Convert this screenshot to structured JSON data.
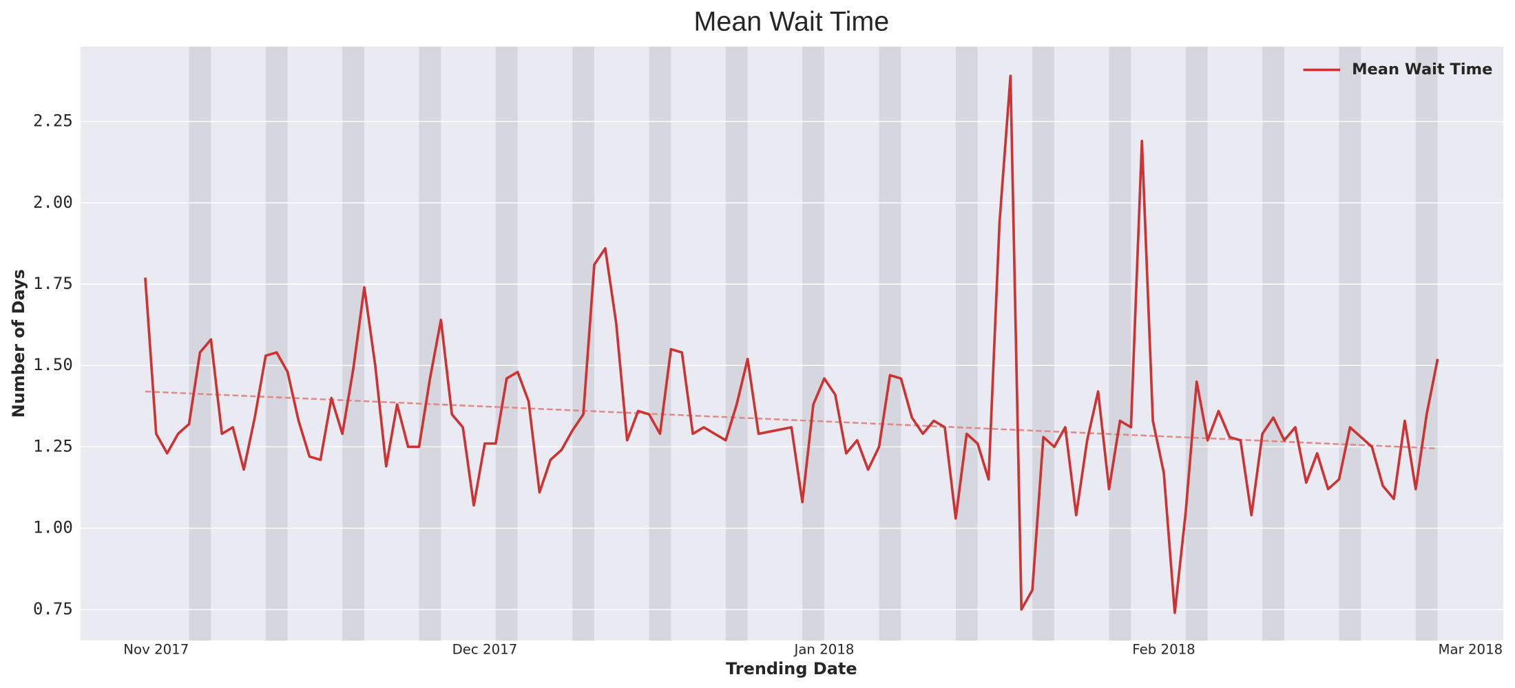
{
  "chart_data": {
    "type": "line",
    "title": "Mean Wait Time",
    "xlabel": "Trending Date",
    "ylabel": "Number of Days",
    "x": [
      -1,
      0,
      1,
      2,
      3,
      4,
      5,
      6,
      7,
      8,
      9,
      10,
      11,
      12,
      13,
      14,
      15,
      16,
      17,
      18,
      19,
      20,
      21,
      22,
      23,
      24,
      25,
      26,
      27,
      28,
      29,
      30,
      31,
      32,
      33,
      34,
      35,
      36,
      37,
      38,
      39,
      40,
      41,
      42,
      43,
      44,
      45,
      46,
      47,
      48,
      49,
      50,
      51,
      52,
      53,
      54,
      55,
      58,
      59,
      60,
      61,
      62,
      63,
      64,
      65,
      66,
      67,
      68,
      69,
      70,
      71,
      72,
      73,
      74,
      75,
      76,
      77,
      78,
      79,
      80,
      81,
      82,
      83,
      84,
      85,
      86,
      87,
      88,
      89,
      90,
      91,
      92,
      93,
      94,
      95,
      96,
      97,
      98,
      99,
      100,
      101,
      102,
      103,
      104,
      105,
      106,
      107,
      108,
      109,
      110,
      111,
      112,
      113,
      114,
      115,
      116,
      117
    ],
    "series": [
      {
        "name": "Mean Wait Time",
        "color": "#cc3333",
        "values": [
          1.77,
          1.29,
          1.23,
          1.29,
          1.32,
          1.54,
          1.58,
          1.29,
          1.31,
          1.18,
          1.34,
          1.53,
          1.54,
          1.48,
          1.33,
          1.22,
          1.21,
          1.4,
          1.29,
          1.49,
          1.74,
          1.5,
          1.19,
          1.38,
          1.25,
          1.25,
          1.46,
          1.64,
          1.35,
          1.31,
          1.07,
          1.26,
          1.26,
          1.46,
          1.48,
          1.39,
          1.11,
          1.21,
          1.24,
          1.3,
          1.35,
          1.81,
          1.86,
          1.63,
          1.27,
          1.36,
          1.35,
          1.29,
          1.55,
          1.54,
          1.29,
          1.31,
          1.29,
          1.27,
          1.38,
          1.52,
          1.29,
          1.31,
          1.08,
          1.38,
          1.46,
          1.41,
          1.23,
          1.27,
          1.18,
          1.25,
          1.47,
          1.46,
          1.34,
          1.29,
          1.33,
          1.31,
          1.03,
          1.29,
          1.26,
          1.15,
          1.94,
          2.39,
          0.75,
          0.81,
          1.28,
          1.25,
          1.31,
          1.04,
          1.27,
          1.42,
          1.12,
          1.33,
          1.31,
          2.19,
          1.33,
          1.17,
          0.74,
          1.05,
          1.45,
          1.27,
          1.36,
          1.28,
          1.27,
          1.04,
          1.29,
          1.34,
          1.27,
          1.31,
          1.14,
          1.23,
          1.12,
          1.15,
          1.31,
          1.28,
          1.25,
          1.13,
          1.09,
          1.33,
          1.12,
          1.35,
          1.52
        ]
      }
    ],
    "trend": {
      "x": [
        -1,
        117
      ],
      "values": [
        1.42,
        1.245
      ],
      "color": "#e08a88"
    },
    "weekend_bands": [
      [
        3,
        5
      ],
      [
        10,
        12
      ],
      [
        17,
        19
      ],
      [
        24,
        26
      ],
      [
        31,
        33
      ],
      [
        38,
        40
      ],
      [
        45,
        47
      ],
      [
        52,
        54
      ],
      [
        59,
        61
      ],
      [
        66,
        68
      ],
      [
        73,
        75
      ],
      [
        80,
        82
      ],
      [
        87,
        89
      ],
      [
        94,
        96
      ],
      [
        101,
        103
      ],
      [
        108,
        110
      ],
      [
        115,
        117
      ]
    ],
    "xlim": [
      -6.9,
      123
    ],
    "ylim": [
      0.655,
      2.48
    ],
    "xticks": [
      {
        "value": 0,
        "label": "Nov 2017"
      },
      {
        "value": 30,
        "label": "Dec 2017"
      },
      {
        "value": 61,
        "label": "Jan 2018"
      },
      {
        "value": 92,
        "label": "Feb 2018"
      },
      {
        "value": 120,
        "label": "Mar 2018"
      }
    ],
    "yticks": [
      0.75,
      {
        "value": 1,
        "label": "1.00"
      },
      1.25,
      {
        "value": 1.5,
        "label": "1.50"
      },
      1.75,
      {
        "value": 2,
        "label": "2.00"
      },
      2.25
    ],
    "grid": true,
    "legend": "upper right"
  }
}
